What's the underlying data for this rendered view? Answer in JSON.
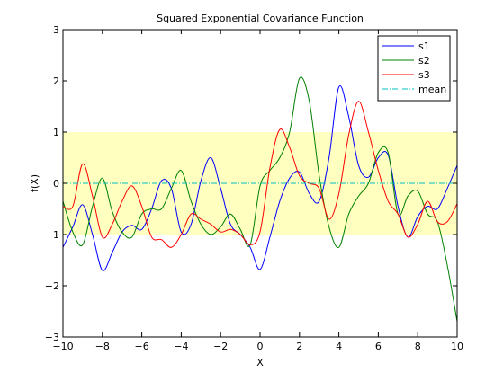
{
  "chart_data": {
    "type": "line",
    "title": "Squared Exponential Covariance Function",
    "xlabel": "X",
    "ylabel": "f(X)",
    "xlim": [
      -10,
      10
    ],
    "ylim": [
      -3,
      3
    ],
    "xticks": [
      -10,
      -8,
      -6,
      -4,
      -2,
      0,
      2,
      4,
      6,
      8,
      10
    ],
    "yticks": [
      -3,
      -2,
      -1,
      0,
      1,
      2,
      3
    ],
    "grid": false,
    "legend_position": "top-right",
    "band": {
      "lower": -1,
      "upper": 1,
      "color": "#FFFFBF"
    },
    "x": [
      -10,
      -9.5,
      -9,
      -8.5,
      -8,
      -7.5,
      -7,
      -6.5,
      -6,
      -5.5,
      -5,
      -4.5,
      -4,
      -3.5,
      -3,
      -2.5,
      -2,
      -1.5,
      -1,
      -0.5,
      0,
      0.5,
      1,
      1.5,
      2,
      2.5,
      3,
      3.5,
      4,
      4.5,
      5,
      5.5,
      6,
      6.5,
      7,
      7.5,
      8,
      8.5,
      9,
      9.5,
      10
    ],
    "series": [
      {
        "name": "s1",
        "color": "#0000FF",
        "style": "solid",
        "values": [
          -1.25,
          -0.85,
          -0.42,
          -1.0,
          -1.7,
          -1.35,
          -0.95,
          -0.82,
          -0.9,
          -0.5,
          0.05,
          -0.1,
          -0.95,
          -0.8,
          0.05,
          0.5,
          -0.1,
          -0.8,
          -1.0,
          -1.25,
          -1.68,
          -1.05,
          -0.35,
          0.1,
          0.22,
          -0.2,
          -0.35,
          0.5,
          1.88,
          1.3,
          0.35,
          0.12,
          0.5,
          0.55,
          -0.45,
          -1.05,
          -0.65,
          -0.45,
          -0.5,
          -0.1,
          0.35
        ]
      },
      {
        "name": "s2",
        "color": "#008000",
        "style": "solid",
        "values": [
          -0.35,
          -0.95,
          -1.2,
          -0.45,
          0.1,
          -0.55,
          -0.95,
          -1.05,
          -0.6,
          -0.5,
          -0.5,
          -0.1,
          0.25,
          -0.35,
          -0.8,
          -1.0,
          -0.85,
          -0.6,
          -0.9,
          -1.2,
          -0.05,
          0.25,
          0.5,
          1.0,
          2.05,
          1.6,
          0.15,
          -0.85,
          -1.25,
          -0.6,
          -0.25,
          0.0,
          0.6,
          0.6,
          -0.6,
          -0.25,
          -0.15,
          -0.6,
          -0.75,
          -1.6,
          -2.7
        ]
      },
      {
        "name": "s3",
        "color": "#FF0000",
        "style": "solid",
        "values": [
          -0.45,
          -0.45,
          0.38,
          -0.25,
          -1.05,
          -0.8,
          -0.35,
          -0.05,
          -0.45,
          -1.05,
          -1.1,
          -1.25,
          -1.0,
          -0.6,
          -0.7,
          -0.8,
          -0.95,
          -0.9,
          -1.0,
          -1.2,
          -0.95,
          0.3,
          1.05,
          0.7,
          0.15,
          0.0,
          -0.1,
          -0.7,
          -0.2,
          0.95,
          1.6,
          1.0,
          0.25,
          -0.35,
          -0.6,
          -1.05,
          -0.8,
          -0.35,
          -0.75,
          -0.75,
          -0.4
        ]
      },
      {
        "name": "mean",
        "color": "#00BFBF",
        "style": "dashdot",
        "values": [
          0,
          0,
          0,
          0,
          0,
          0,
          0,
          0,
          0,
          0,
          0,
          0,
          0,
          0,
          0,
          0,
          0,
          0,
          0,
          0,
          0,
          0,
          0,
          0,
          0,
          0,
          0,
          0,
          0,
          0,
          0,
          0,
          0,
          0,
          0,
          0,
          0,
          0,
          0,
          0,
          0
        ]
      }
    ]
  }
}
